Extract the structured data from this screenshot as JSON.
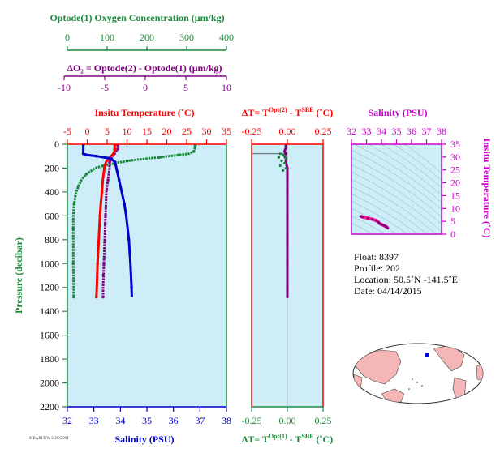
{
  "colors": {
    "oxygen": "#1a8a3a",
    "delta_o2": "#800080",
    "temperature": "#ff0000",
    "salinity": "#0000cc",
    "pressure": "#1a8a3a",
    "plot_bg": "#cdeef8",
    "ts_axis": "#cc00cc",
    "ts_series": "#ff1493",
    "ts_series2": "#800080",
    "land": "#f4b6b6",
    "ocean": "#ffffff"
  },
  "labels": {
    "oxygen_axis": "Optode(1) Oxygen Concentration (μm/kg)",
    "delta_o2_axis": "ΔO₂ = Optode(2) - Optode(1)   (μm/kg)",
    "temperature_axis": "Insitu Temperature (˚C)",
    "pressure_axis": "Pressure (decibar)",
    "salinity_axis": "Salinity (PSU)",
    "dt_top": "ΔT= T^Opt(2) - T^SBE (˚C)",
    "dt_bottom": "ΔT= T^Opt(1) - T^SBE (˚C)",
    "ts_salinity_axis": "Salinity (PSU)",
    "ts_temperature_axis": "Insitu Temperature (˚C)",
    "footer_text": "MBARI/UW SOCCOM"
  },
  "info": {
    "float": "Float:  8397",
    "profile": "Profile:  202",
    "location": "Location:  50.5˚N  -141.5˚E",
    "date": "Date:  04/14/2015"
  },
  "chart_data": [
    {
      "type": "line",
      "name": "main-profile",
      "pressure_ticks": [
        0,
        200,
        400,
        600,
        800,
        1000,
        1200,
        1400,
        1600,
        1800,
        2000,
        2200
      ],
      "pressure_range": [
        0,
        2200
      ],
      "axes": {
        "oxygen": {
          "range": [
            0,
            400
          ],
          "ticks": [
            0,
            100,
            200,
            300,
            400
          ]
        },
        "delta_o2": {
          "range": [
            -10,
            10
          ],
          "ticks": [
            -10,
            -5,
            0,
            5,
            10
          ]
        },
        "temperature": {
          "range": [
            -5,
            35
          ],
          "ticks": [
            -5,
            0,
            5,
            10,
            15,
            20,
            25,
            30,
            35
          ]
        },
        "salinity": {
          "range": [
            32,
            38
          ],
          "ticks": [
            32,
            33,
            34,
            35,
            36,
            37,
            38
          ]
        }
      },
      "series": [
        {
          "name": "Oxygen",
          "axis": "oxygen",
          "pressure": [
            5,
            10,
            20,
            40,
            60,
            80,
            90,
            100,
            110,
            120,
            140,
            160,
            180,
            200,
            250,
            300,
            350,
            400,
            500,
            600,
            700,
            800,
            1000,
            1200,
            1280
          ],
          "values": [
            322,
            322,
            321,
            320,
            318,
            305,
            280,
            255,
            230,
            200,
            150,
            120,
            90,
            70,
            48,
            35,
            28,
            22,
            17,
            15,
            15,
            15,
            15,
            16,
            16
          ]
        },
        {
          "name": "ΔO2",
          "axis": "delta_o2",
          "pressure": [
            5,
            20,
            40,
            60,
            80,
            100,
            150,
            200,
            300,
            400,
            600,
            800,
            1000,
            1200,
            1280
          ],
          "values": [
            -3.4,
            -3.4,
            -3.4,
            -3.6,
            -3.8,
            -4.0,
            -4.4,
            -4.4,
            -4.6,
            -4.8,
            -4.9,
            -5.0,
            -5.1,
            -5.2,
            -5.2
          ]
        },
        {
          "name": "Temperature",
          "axis": "temperature",
          "pressure": [
            5,
            20,
            40,
            60,
            80,
            100,
            120,
            150,
            200,
            300,
            400,
            500,
            600,
            800,
            1000,
            1200,
            1280
          ],
          "values": [
            6.9,
            6.9,
            6.9,
            6.8,
            6.6,
            6.0,
            5.3,
            4.7,
            4.3,
            3.9,
            3.7,
            3.4,
            3.2,
            2.9,
            2.6,
            2.4,
            2.3
          ]
        },
        {
          "name": "Salinity",
          "axis": "salinity",
          "pressure": [
            5,
            40,
            80,
            90,
            100,
            120,
            150,
            200,
            300,
            400,
            500,
            600,
            800,
            1000,
            1200,
            1280
          ],
          "values": [
            32.6,
            32.6,
            32.6,
            32.75,
            33.1,
            33.65,
            33.8,
            33.85,
            33.95,
            34.05,
            34.15,
            34.22,
            34.32,
            34.38,
            34.42,
            34.43
          ]
        }
      ]
    },
    {
      "type": "scatter",
      "name": "delta-t",
      "dt_range": [
        -0.25,
        0.25
      ],
      "dt_ticks": [
        "-0.25",
        "0.00",
        "0.25"
      ],
      "pressure_range": [
        0,
        2200
      ],
      "series": [
        {
          "name": "Opt(2)",
          "pressure": [
            10,
            30,
            60,
            80,
            100,
            120,
            150,
            200,
            300,
            400,
            600,
            800,
            1000,
            1200,
            1280
          ],
          "values": [
            -0.01,
            -0.01,
            -0.02,
            -0.01,
            -0.02,
            -0.01,
            -0.01,
            0.0,
            0.0,
            0.0,
            0.0,
            0.0,
            0.0,
            0.0,
            0.0
          ]
        },
        {
          "name": "Opt(1)",
          "pressure": [
            80,
            90,
            100,
            110,
            120,
            140,
            160,
            180,
            200,
            220
          ],
          "values": [
            -0.05,
            -0.03,
            -0.02,
            -0.06,
            -0.01,
            -0.04,
            -0.02,
            -0.05,
            -0.01,
            -0.03
          ]
        }
      ],
      "surface_line": {
        "pressure": 80,
        "from": -0.25,
        "to": 0.0
      }
    },
    {
      "type": "scatter",
      "name": "ts-diagram",
      "salinity_range": [
        32,
        38
      ],
      "salinity_ticks": [
        32,
        33,
        34,
        35,
        36,
        37,
        38
      ],
      "temperature_range": [
        0,
        35
      ],
      "temperature_ticks": [
        0,
        5,
        10,
        15,
        20,
        25,
        30,
        35
      ],
      "series": [
        {
          "name": "TS",
          "salinity": [
            32.6,
            32.65,
            32.75,
            33.1,
            33.4,
            33.65,
            33.8,
            33.85,
            33.95,
            34.05,
            34.15,
            34.22,
            34.32,
            34.38,
            34.43
          ],
          "temperature": [
            6.9,
            6.9,
            6.7,
            6.2,
            5.8,
            5.3,
            4.7,
            4.3,
            3.9,
            3.7,
            3.4,
            3.2,
            2.9,
            2.6,
            2.3
          ]
        }
      ]
    }
  ]
}
